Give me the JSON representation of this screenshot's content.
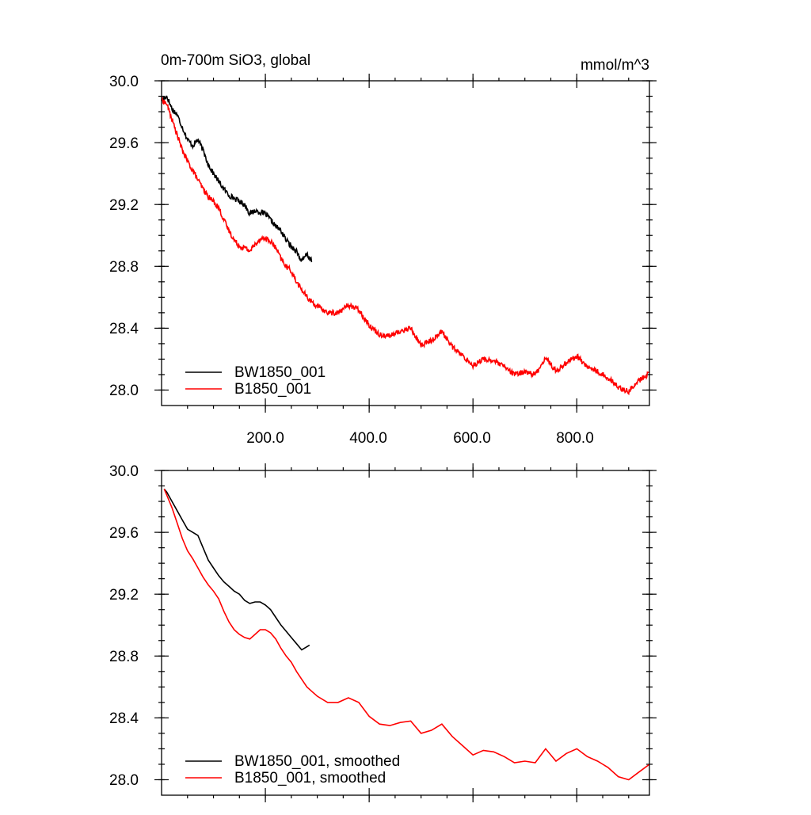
{
  "colors": {
    "BW1850_001": "#000000",
    "B1850_001": "#ff0000"
  },
  "chart_data": [
    {
      "type": "line",
      "title": "0m-700m SiO3, global",
      "units": "mmol/m^3",
      "xlim": [
        0,
        940
      ],
      "ylim": [
        27.9,
        30.0
      ],
      "x_ticks": [
        200,
        400,
        600,
        800
      ],
      "x_tick_labels": [
        "200.0",
        "400.0",
        "600.0",
        "800.0"
      ],
      "y_ticks": [
        28.0,
        28.4,
        28.8,
        29.2,
        29.6,
        30.0
      ],
      "y_tick_labels": [
        "28.0",
        "28.4",
        "28.8",
        "29.2",
        "29.6",
        "30.0"
      ],
      "legend": "bottom-left",
      "grid": false,
      "series": [
        {
          "name": "BW1850_001",
          "color": "#000000",
          "x": [
            0,
            10,
            20,
            30,
            40,
            50,
            60,
            70,
            80,
            90,
            100,
            110,
            120,
            130,
            140,
            150,
            160,
            170,
            180,
            190,
            200,
            210,
            220,
            230,
            240,
            250,
            260,
            270,
            280,
            290
          ],
          "y": [
            29.88,
            29.9,
            29.82,
            29.78,
            29.7,
            29.62,
            29.58,
            29.62,
            29.55,
            29.46,
            29.4,
            29.35,
            29.3,
            29.26,
            29.24,
            29.22,
            29.2,
            29.14,
            29.16,
            29.15,
            29.14,
            29.1,
            29.06,
            29.03,
            28.97,
            28.93,
            28.9,
            28.83,
            28.88,
            28.83
          ]
        },
        {
          "name": "B1850_001",
          "color": "#ff0000",
          "x": [
            0,
            10,
            20,
            30,
            40,
            50,
            60,
            70,
            80,
            90,
            100,
            110,
            120,
            130,
            140,
            150,
            160,
            170,
            180,
            190,
            200,
            210,
            220,
            230,
            240,
            250,
            260,
            270,
            280,
            290,
            300,
            320,
            340,
            360,
            380,
            400,
            420,
            440,
            460,
            480,
            500,
            520,
            540,
            560,
            580,
            600,
            620,
            640,
            660,
            680,
            700,
            720,
            740,
            760,
            780,
            800,
            820,
            840,
            860,
            880,
            900,
            920,
            940
          ],
          "y": [
            29.88,
            29.85,
            29.75,
            29.65,
            29.55,
            29.48,
            29.42,
            29.36,
            29.3,
            29.25,
            29.22,
            29.18,
            29.1,
            29.03,
            28.97,
            28.93,
            28.92,
            28.9,
            28.94,
            28.98,
            28.98,
            28.96,
            28.92,
            28.85,
            28.8,
            28.77,
            28.7,
            28.65,
            28.6,
            28.57,
            28.54,
            28.5,
            28.5,
            28.55,
            28.52,
            28.42,
            28.36,
            28.35,
            28.38,
            28.4,
            28.29,
            28.32,
            28.38,
            28.28,
            28.22,
            28.16,
            28.2,
            28.19,
            28.15,
            28.1,
            28.12,
            28.1,
            28.21,
            28.12,
            28.18,
            28.22,
            28.15,
            28.12,
            28.08,
            28.02,
            27.99,
            28.06,
            28.11
          ]
        }
      ]
    },
    {
      "type": "line",
      "title": "",
      "xlim": [
        0,
        940
      ],
      "ylim": [
        27.9,
        30.0
      ],
      "y_ticks": [
        28.0,
        28.4,
        28.8,
        29.2,
        29.6,
        30.0
      ],
      "y_tick_labels": [
        "28.0",
        "28.4",
        "28.8",
        "29.2",
        "29.6",
        "30.0"
      ],
      "legend": "bottom-left",
      "grid": false,
      "series": [
        {
          "name": "BW1850_001, smoothed",
          "color": "#000000",
          "x": [
            5,
            10,
            20,
            30,
            40,
            50,
            60,
            70,
            80,
            90,
            100,
            110,
            120,
            130,
            140,
            150,
            160,
            170,
            180,
            190,
            200,
            210,
            220,
            230,
            240,
            250,
            260,
            270,
            280,
            285
          ],
          "y": [
            29.88,
            29.86,
            29.8,
            29.74,
            29.68,
            29.62,
            29.6,
            29.58,
            29.5,
            29.42,
            29.37,
            29.32,
            29.28,
            29.25,
            29.22,
            29.2,
            29.16,
            29.14,
            29.15,
            29.15,
            29.13,
            29.1,
            29.05,
            29.0,
            28.96,
            28.92,
            28.88,
            28.84,
            28.86,
            28.87
          ]
        },
        {
          "name": "B1850_001, smoothed",
          "color": "#ff0000",
          "x": [
            5,
            10,
            20,
            30,
            40,
            50,
            60,
            70,
            80,
            90,
            100,
            110,
            120,
            130,
            140,
            150,
            160,
            170,
            180,
            190,
            200,
            210,
            220,
            230,
            240,
            250,
            260,
            270,
            280,
            290,
            300,
            320,
            340,
            360,
            380,
            400,
            420,
            440,
            460,
            480,
            500,
            520,
            540,
            560,
            580,
            600,
            620,
            640,
            660,
            680,
            700,
            720,
            740,
            760,
            780,
            800,
            820,
            840,
            860,
            880,
            900,
            920,
            940
          ],
          "y": [
            29.88,
            29.84,
            29.76,
            29.66,
            29.56,
            29.48,
            29.43,
            29.37,
            29.31,
            29.26,
            29.22,
            29.17,
            29.09,
            29.02,
            28.97,
            28.94,
            28.92,
            28.91,
            28.94,
            28.97,
            28.97,
            28.95,
            28.91,
            28.85,
            28.8,
            28.76,
            28.7,
            28.65,
            28.6,
            28.57,
            28.54,
            28.5,
            28.5,
            28.53,
            28.5,
            28.41,
            28.36,
            28.35,
            28.37,
            28.38,
            28.3,
            28.32,
            28.36,
            28.28,
            28.22,
            28.16,
            28.19,
            28.18,
            28.15,
            28.11,
            28.12,
            28.11,
            28.2,
            28.12,
            28.17,
            28.2,
            28.15,
            28.12,
            28.08,
            28.02,
            28.0,
            28.05,
            28.1
          ]
        }
      ]
    }
  ]
}
